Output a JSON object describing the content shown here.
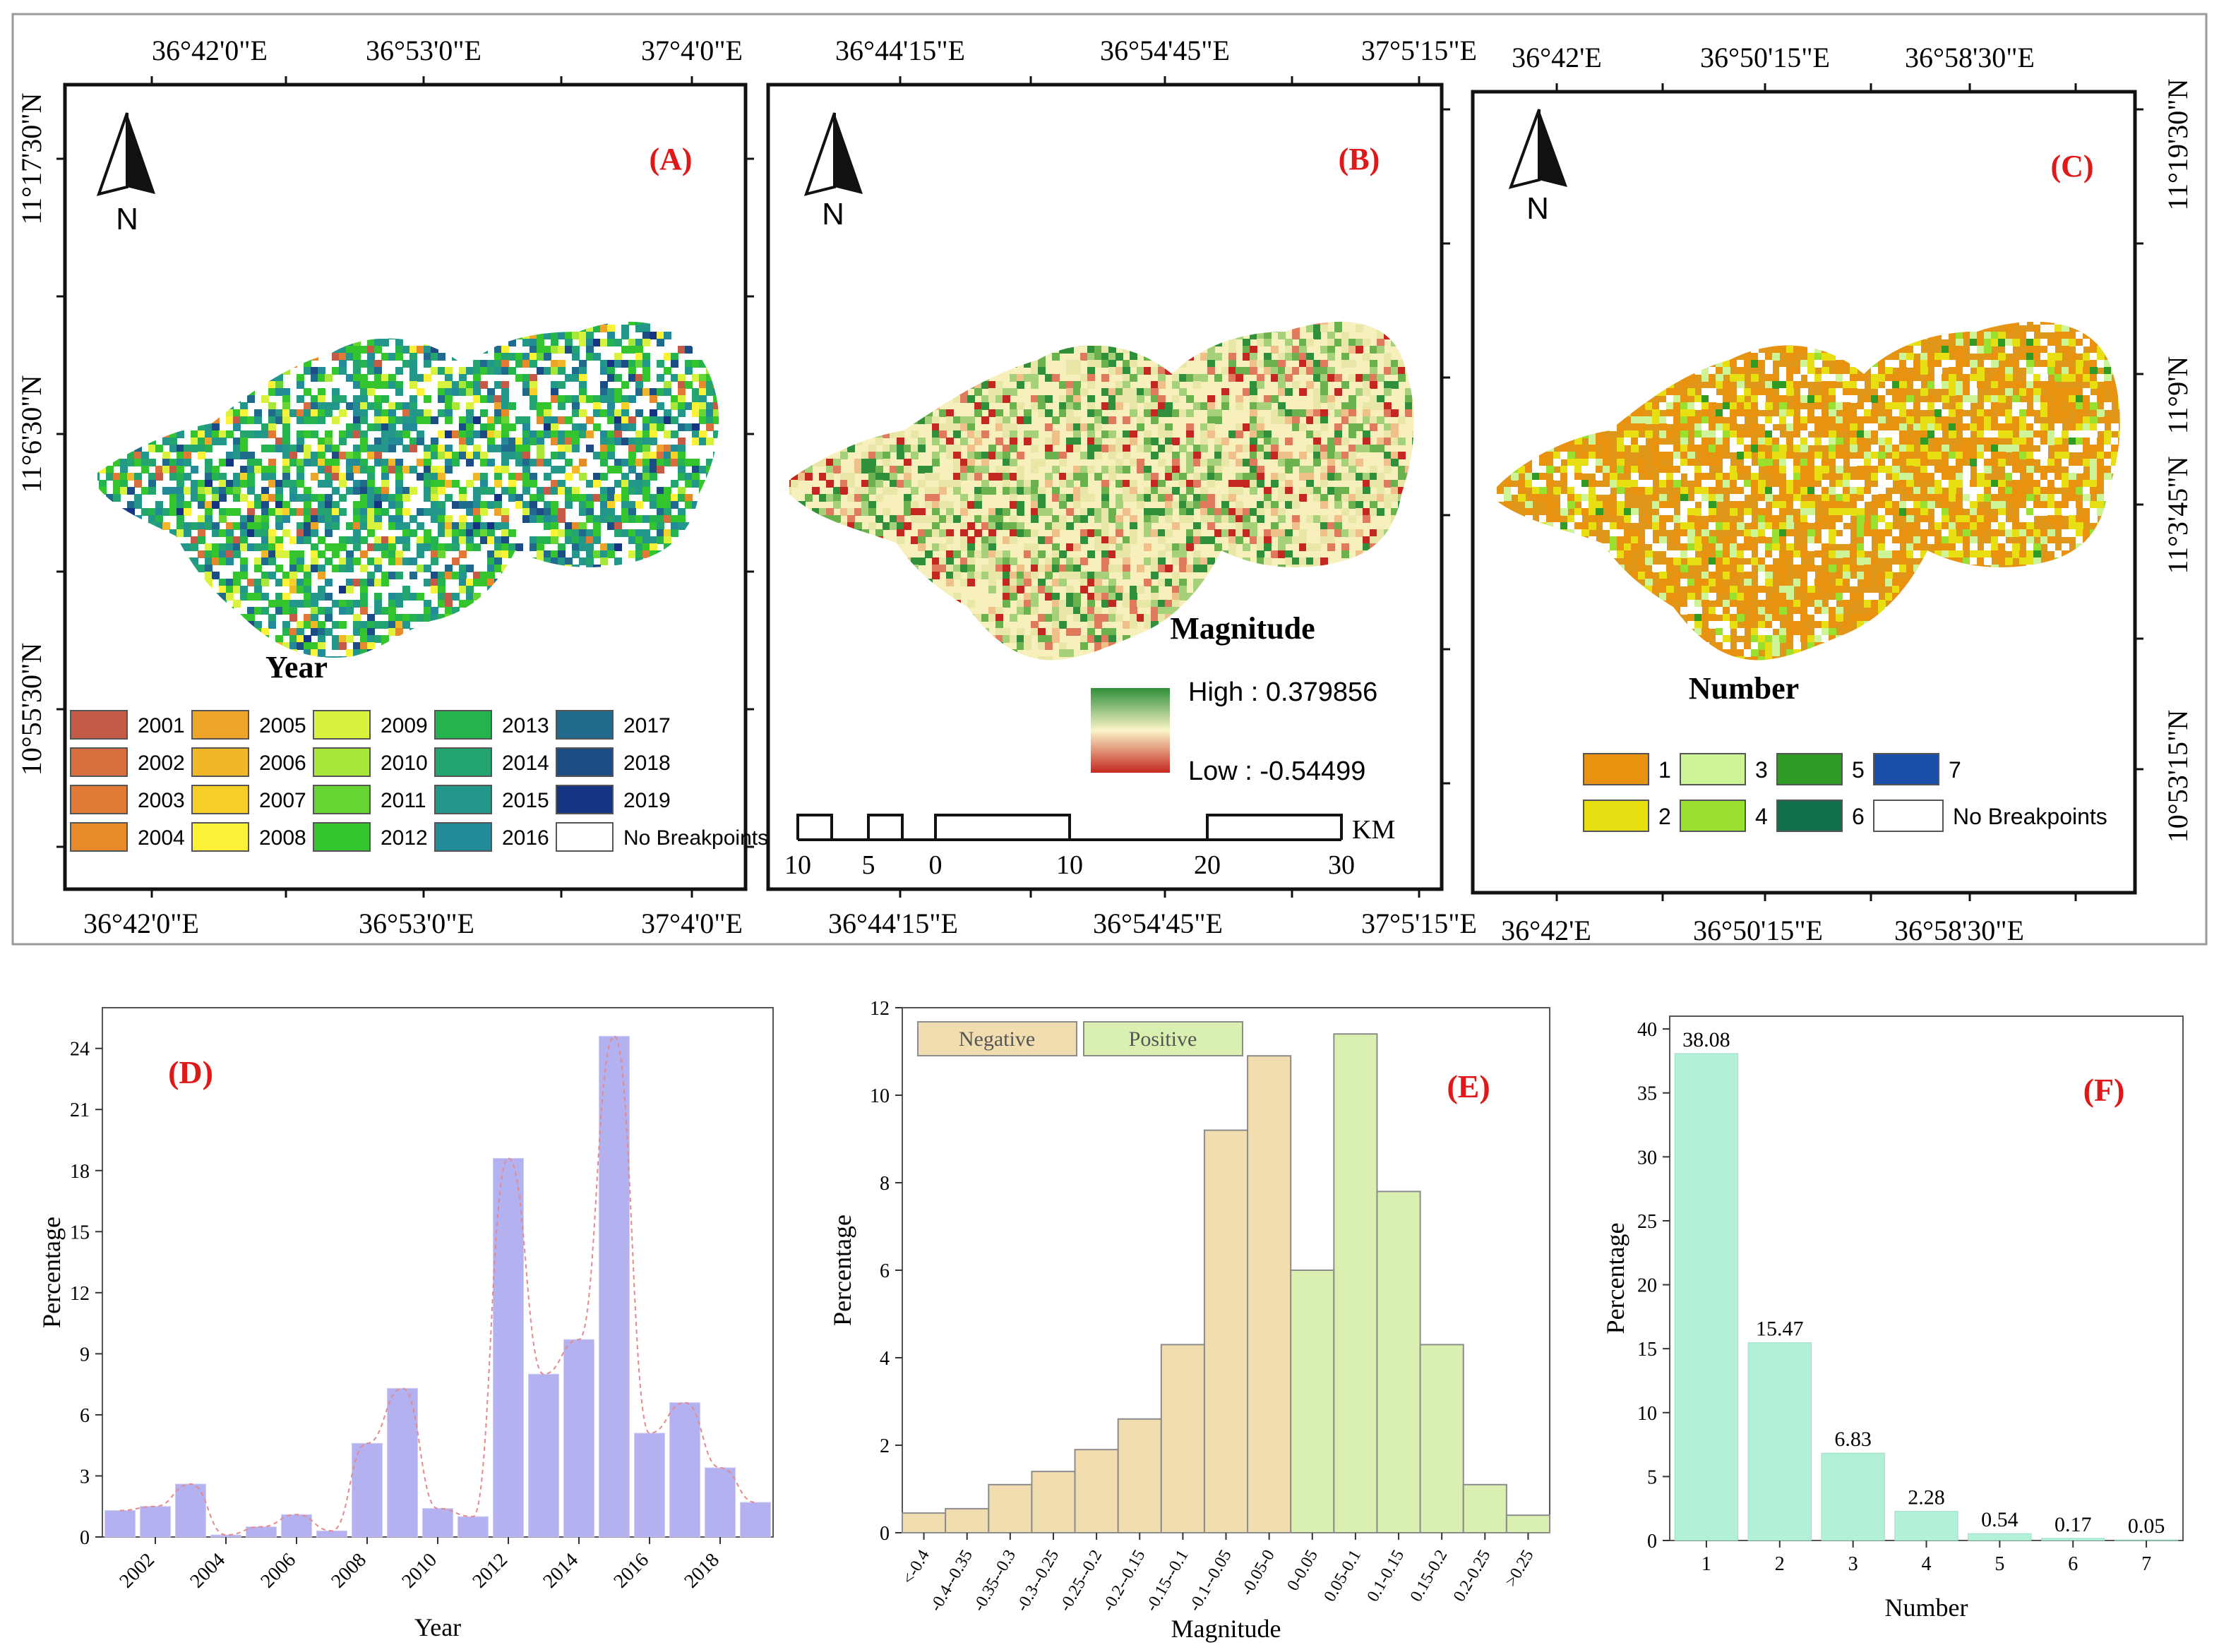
{
  "map_figure": {
    "panels": [
      {
        "letter": "(A)",
        "north": "N",
        "top_ticks": [
          "36°42'0\"E",
          "36°53'0\"E",
          "37°4'0\"E"
        ],
        "bottom_ticks": [
          "36°42'0\"E",
          "36°53'0\"E",
          "37°4'0\"E"
        ],
        "left_ticks": [
          "11°17'30\"N",
          "11°6'30\"N",
          "10°55'30\"N"
        ],
        "legend_title": "Year",
        "legend": [
          {
            "label": "2001",
            "color": "#c55a47"
          },
          {
            "label": "2002",
            "color": "#d66e3e"
          },
          {
            "label": "2003",
            "color": "#e07a35"
          },
          {
            "label": "2004",
            "color": "#e68a2a"
          },
          {
            "label": "2005",
            "color": "#eea329"
          },
          {
            "label": "2006",
            "color": "#f1b728"
          },
          {
            "label": "2007",
            "color": "#f6cf2b"
          },
          {
            "label": "2008",
            "color": "#fbf137"
          },
          {
            "label": "2009",
            "color": "#d9f23d"
          },
          {
            "label": "2010",
            "color": "#a6e73a"
          },
          {
            "label": "2011",
            "color": "#66d433"
          },
          {
            "label": "2012",
            "color": "#33c42e"
          },
          {
            "label": "2013",
            "color": "#25b350"
          },
          {
            "label": "2014",
            "color": "#23a470"
          },
          {
            "label": "2015",
            "color": "#22978a"
          },
          {
            "label": "2016",
            "color": "#238b97"
          },
          {
            "label": "2017",
            "color": "#1f6a8d"
          },
          {
            "label": "2018",
            "color": "#1b4d84"
          },
          {
            "label": "2019",
            "color": "#143380"
          },
          {
            "label": "No Breakpoints",
            "color": "#ffffff"
          }
        ]
      },
      {
        "letter": "(B)",
        "north": "N",
        "top_ticks": [
          "36°44'15\"E",
          "36°54'45\"E",
          "37°5'15\"E"
        ],
        "bottom_ticks": [
          "36°44'15\"E",
          "36°54'45\"E",
          "37°5'15\"E"
        ],
        "legend_title": "Magnitude",
        "high_label": "High : 0.379856",
        "low_label": "Low : -0.54499",
        "scale_unit": "KM",
        "scale_labels": [
          "10",
          "5",
          "0",
          "10",
          "20",
          "30"
        ]
      },
      {
        "letter": "(C)",
        "north": "N",
        "top_ticks": [
          "36°42'E",
          "36°50'15\"E",
          "36°58'30\"E"
        ],
        "bottom_ticks": [
          "36°42'E",
          "36°50'15\"E",
          "36°58'30\"E"
        ],
        "right_ticks": [
          "11°19'30\"N",
          "11°9'N",
          "11°3'45\"N",
          "10°53'15\"N"
        ],
        "legend_title": "Number",
        "legend": [
          {
            "label": "1",
            "color": "#e8920f"
          },
          {
            "label": "2",
            "color": "#e8df12"
          },
          {
            "label": "3",
            "color": "#cdf598"
          },
          {
            "label": "4",
            "color": "#99e02f"
          },
          {
            "label": "5",
            "color": "#2f9b25"
          },
          {
            "label": "6",
            "color": "#13704d"
          },
          {
            "label": "7",
            "color": "#1a4fa8"
          },
          {
            "label": "No Breakpoints",
            "color": "#ffffff"
          }
        ]
      }
    ]
  },
  "chart_data": [
    {
      "panel": "(D)",
      "type": "bar",
      "xlabel": "Year",
      "ylabel": "Percentage",
      "color": "#b3b1f0",
      "categories": [
        "2001",
        "2002",
        "2003",
        "2004",
        "2005",
        "2006",
        "2007",
        "2008",
        "2009",
        "2010",
        "2011",
        "2012",
        "2013",
        "2014",
        "2015",
        "2016",
        "2017",
        "2018",
        "2019"
      ],
      "values": [
        1.3,
        1.5,
        2.6,
        0.1,
        0.5,
        1.1,
        0.3,
        4.6,
        7.3,
        1.4,
        1.0,
        18.6,
        8.0,
        9.7,
        24.6,
        5.1,
        6.6,
        3.4,
        1.7
      ],
      "xticks": [
        "2002",
        "2004",
        "2006",
        "2008",
        "2010",
        "2012",
        "2014",
        "2016",
        "2018"
      ],
      "yticks": [
        "0",
        "3",
        "6",
        "9",
        "12",
        "15",
        "18",
        "21",
        "24"
      ],
      "ylim": [
        0,
        26
      ]
    },
    {
      "panel": "(E)",
      "type": "bar",
      "xlabel": "Magnitude",
      "ylabel": "Percentage",
      "legend": [
        {
          "name": "Negative",
          "color": "#f2ddb0"
        },
        {
          "name": "Positive",
          "color": "#d9f0b0"
        }
      ],
      "categories": [
        "<-0.4",
        "-0.4--0.35",
        "-0.35--0.3",
        "-0.3--0.25",
        "-0.25--0.2",
        "-0.2--0.15",
        "-0.15--0.1",
        "-0.1--0.05",
        "-0.05-0",
        "0-0.05",
        "0.05-0.1",
        "0.1-0.15",
        "0.15-0.2",
        "0.2-0.25",
        ">0.25"
      ],
      "groups": [
        "Negative",
        "Negative",
        "Negative",
        "Negative",
        "Negative",
        "Negative",
        "Negative",
        "Negative",
        "Negative",
        "Positive",
        "Positive",
        "Positive",
        "Positive",
        "Positive",
        "Positive"
      ],
      "values": [
        0.45,
        0.55,
        1.1,
        1.4,
        1.9,
        2.6,
        4.3,
        9.2,
        10.9,
        6.0,
        11.4,
        7.8,
        4.3,
        1.1,
        0.4
      ],
      "yticks": [
        "0",
        "2",
        "4",
        "6",
        "8",
        "10",
        "12"
      ],
      "ylim": [
        0,
        12
      ]
    },
    {
      "panel": "(F)",
      "type": "bar",
      "xlabel": "Number",
      "ylabel": "Percentage",
      "color": "#b3f0d8",
      "categories": [
        "1",
        "2",
        "3",
        "4",
        "5",
        "6",
        "7"
      ],
      "values": [
        38.08,
        15.47,
        6.83,
        2.28,
        0.54,
        0.17,
        0.05
      ],
      "data_labels": [
        "38.08",
        "15.47",
        "6.83",
        "2.28",
        "0.54",
        "0.17",
        "0.05"
      ],
      "yticks": [
        "0",
        "5",
        "10",
        "15",
        "20",
        "25",
        "30",
        "35",
        "40"
      ],
      "ylim": [
        0,
        41
      ]
    }
  ]
}
